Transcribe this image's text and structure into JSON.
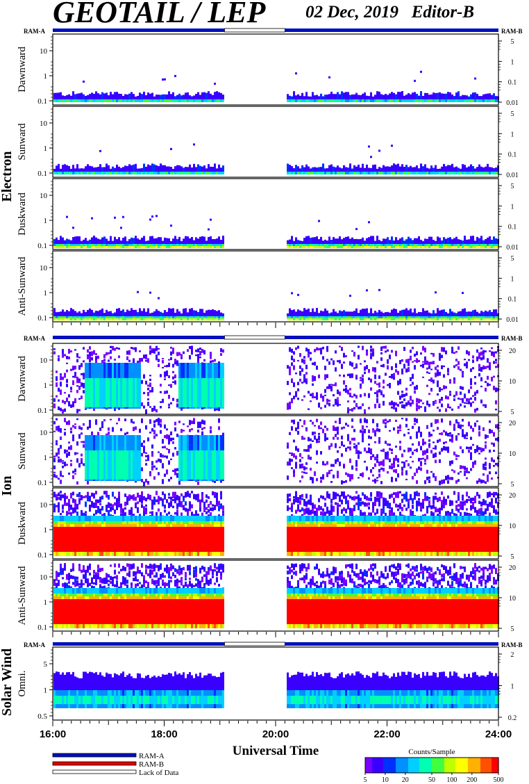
{
  "header": {
    "title": "GEOTAIL / LEP",
    "date": "02 Dec, 2019",
    "editor": "Editor-B"
  },
  "chart_data": {
    "type": "heatmap",
    "date": "02 Dec, 2019",
    "x_label": "Universal Time",
    "x_range": [
      "16:00",
      "24:00"
    ],
    "x_ticks": [
      "16:00",
      "18:00",
      "20:00",
      "22:00",
      "24:00"
    ],
    "data_gap": [
      "19:05",
      "20:10"
    ],
    "groups": [
      {
        "name": "Electron",
        "ram_left": "RAM-A",
        "ram_right": "RAM-B",
        "panels": [
          {
            "label": "Dawnward",
            "left_ticks": [
              "10",
              "1",
              "0.1"
            ],
            "right_ticks": [
              "5",
              "1",
              "0.1",
              "0.01"
            ]
          },
          {
            "label": "Sunward",
            "left_ticks": [
              "10",
              "1",
              "0.1"
            ],
            "right_ticks": [
              "5",
              "1",
              "0.1",
              "0.01"
            ]
          },
          {
            "label": "Duskward",
            "left_ticks": [
              "10",
              "1",
              "0.1"
            ],
            "right_ticks": [
              "5",
              "1",
              "0.1",
              "0.01"
            ]
          },
          {
            "label": "Anti-Sunward",
            "left_ticks": [
              "10",
              "1",
              "0.1"
            ],
            "right_ticks": [
              "5",
              "1",
              "0.1",
              "0.01"
            ]
          }
        ]
      },
      {
        "name": "Ion",
        "ram_left": "RAM-A",
        "ram_right": "RAM-B",
        "panels": [
          {
            "label": "Dawnward",
            "left_ticks": [
              "10",
              "1",
              "0.1"
            ],
            "right_ticks": [
              "20",
              "10",
              "5"
            ]
          },
          {
            "label": "Sunward",
            "left_ticks": [
              "10",
              "1",
              "0.1"
            ],
            "right_ticks": [
              "20",
              "10",
              "5"
            ]
          },
          {
            "label": "Duskward",
            "left_ticks": [
              "10",
              "1",
              "0.1"
            ],
            "right_ticks": [
              "20",
              "10",
              "5"
            ]
          },
          {
            "label": "Anti-Sunward",
            "left_ticks": [
              "10",
              "1",
              "0.1"
            ],
            "right_ticks": [
              "20",
              "10",
              "5"
            ]
          }
        ]
      },
      {
        "name": "Solar Wind",
        "ram_left": "RAM-A",
        "ram_right": "RAM-B",
        "panels": [
          {
            "label": "Omni.",
            "left_ticks": [
              "5",
              "1",
              "0.5"
            ],
            "right_ticks": [
              "2",
              "1",
              "0.2"
            ]
          }
        ]
      }
    ],
    "legend": [
      "RAM-A",
      "RAM-B",
      "Lack of Data"
    ],
    "colorbar": {
      "title": "Counts/Sample",
      "ticks": [
        "5",
        "10",
        "20",
        "50",
        "100",
        "200",
        "500"
      ],
      "range": [
        5,
        500
      ],
      "scale": "log"
    },
    "colors": {
      "ram_a": "#0010c0",
      "ram_b": "#e00000",
      "gap": "#ffffff"
    }
  }
}
